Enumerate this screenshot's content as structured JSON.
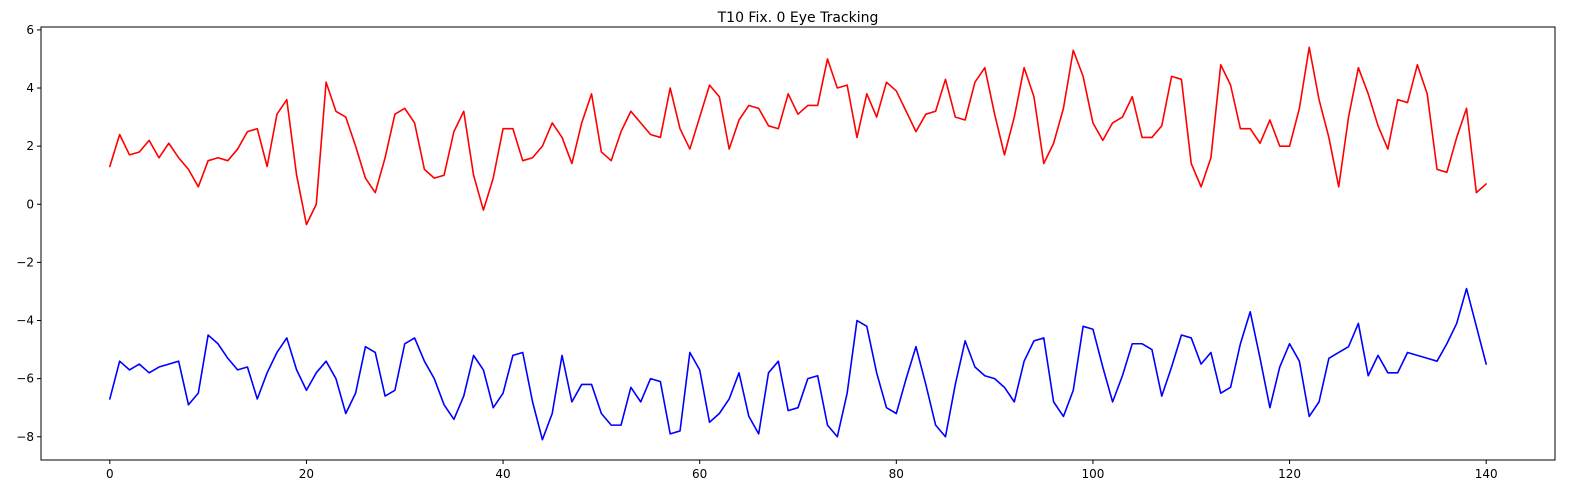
{
  "chart_data": {
    "type": "line",
    "title": "T10 Fix. 0 Eye Tracking",
    "xlabel": "",
    "ylabel": "",
    "xlim": [
      -7,
      147
    ],
    "ylim": [
      -8.8,
      6.1
    ],
    "xticks": [
      0,
      20,
      40,
      60,
      80,
      100,
      120,
      140
    ],
    "yticks": [
      -8,
      -6,
      -4,
      -2,
      0,
      2,
      4,
      6
    ],
    "grid": false,
    "legend": "none",
    "x": [
      0,
      1,
      2,
      3,
      4,
      5,
      6,
      7,
      8,
      9,
      10,
      11,
      12,
      13,
      14,
      15,
      16,
      17,
      18,
      19,
      20,
      21,
      22,
      23,
      24,
      25,
      26,
      27,
      28,
      29,
      30,
      31,
      32,
      33,
      34,
      35,
      36,
      37,
      38,
      39,
      40,
      41,
      42,
      43,
      44,
      45,
      46,
      47,
      48,
      49,
      50,
      51,
      52,
      53,
      54,
      55,
      56,
      57,
      58,
      59,
      60,
      61,
      62,
      63,
      64,
      65,
      66,
      67,
      68,
      69,
      70,
      71,
      72,
      73,
      74,
      75,
      76,
      77,
      78,
      79,
      80,
      81,
      82,
      83,
      84,
      85,
      86,
      87,
      88,
      89,
      90,
      91,
      92,
      93,
      94,
      95,
      96,
      97,
      98,
      99,
      100,
      101,
      102,
      103,
      104,
      105,
      106,
      107,
      108,
      109,
      110,
      111,
      112,
      113,
      114,
      115,
      116,
      117,
      118,
      119,
      120,
      121,
      122,
      123,
      124,
      125,
      126,
      127,
      128,
      129,
      130,
      131,
      132,
      133,
      134,
      135,
      136,
      137,
      138,
      139,
      140
    ],
    "series": [
      {
        "color": "#ff0000",
        "values": [
          1.3,
          2.4,
          1.7,
          1.8,
          2.2,
          1.6,
          2.1,
          1.6,
          1.2,
          0.6,
          1.5,
          1.6,
          1.5,
          1.9,
          2.5,
          2.6,
          1.3,
          3.1,
          3.6,
          1.0,
          -0.7,
          0.0,
          4.2,
          3.2,
          3.0,
          2.0,
          0.9,
          0.4,
          1.6,
          3.1,
          3.3,
          2.8,
          1.2,
          0.9,
          1.0,
          2.5,
          3.2,
          1.0,
          -0.2,
          0.9,
          2.6,
          2.6,
          1.5,
          1.6,
          2.0,
          2.8,
          2.3,
          1.4,
          2.8,
          3.8,
          1.8,
          1.5,
          2.5,
          3.2,
          2.8,
          2.4,
          2.3,
          4.0,
          2.6,
          1.9,
          3.0,
          4.1,
          3.7,
          1.9,
          2.9,
          3.4,
          3.3,
          2.7,
          2.6,
          3.8,
          3.1,
          3.4,
          3.4,
          5.0,
          4.0,
          4.1,
          2.3,
          3.8,
          3.0,
          4.2,
          3.9,
          3.2,
          2.5,
          3.1,
          3.2,
          4.3,
          3.0,
          2.9,
          4.2,
          4.7,
          3.1,
          1.7,
          3.0,
          4.7,
          3.7,
          1.4,
          2.1,
          3.3,
          5.3,
          4.4,
          2.8,
          2.2,
          2.8,
          3.0,
          3.7,
          2.3,
          2.3,
          2.7,
          4.4,
          4.3,
          1.4,
          0.6,
          1.6,
          4.8,
          4.1,
          2.6,
          2.6,
          2.1,
          2.9,
          2.0,
          2.0,
          3.3,
          5.4,
          3.6,
          2.3,
          0.6,
          3.0,
          4.7,
          3.8,
          2.7,
          1.9,
          3.6,
          3.5,
          4.8,
          3.8,
          1.2,
          1.1,
          2.3,
          3.3,
          0.4,
          0.7
        ]
      },
      {
        "color": "#0000ff",
        "values": [
          -6.7,
          -5.4,
          -5.7,
          -5.5,
          -5.8,
          -5.6,
          -5.5,
          -5.4,
          -6.9,
          -6.5,
          -4.5,
          -4.8,
          -5.3,
          -5.7,
          -5.6,
          -6.7,
          -5.8,
          -5.1,
          -4.6,
          -5.7,
          -6.4,
          -5.8,
          -5.4,
          -6.0,
          -7.2,
          -6.5,
          -4.9,
          -5.1,
          -6.6,
          -6.4,
          -4.8,
          -4.6,
          -5.4,
          -6.0,
          -6.9,
          -7.4,
          -6.6,
          -5.2,
          -5.7,
          -7.0,
          -6.5,
          -5.2,
          -5.1,
          -6.8,
          -8.1,
          -7.2,
          -5.2,
          -6.8,
          -6.2,
          -6.2,
          -7.2,
          -7.6,
          -7.6,
          -6.3,
          -6.8,
          -6.0,
          -6.1,
          -7.9,
          -7.8,
          -5.1,
          -5.7,
          -7.5,
          -7.2,
          -6.7,
          -5.8,
          -7.3,
          -7.9,
          -5.8,
          -5.4,
          -7.1,
          -7.0,
          -6.0,
          -5.9,
          -7.6,
          -8.0,
          -6.5,
          -4.0,
          -4.2,
          -5.8,
          -7.0,
          -7.2,
          -6.0,
          -4.9,
          -6.2,
          -7.6,
          -8.0,
          -6.2,
          -4.7,
          -5.6,
          -5.9,
          -6.0,
          -6.3,
          -6.8,
          -5.4,
          -4.7,
          -4.6,
          -6.8,
          -7.3,
          -6.4,
          -4.2,
          -4.3,
          -5.6,
          -6.8,
          -5.9,
          -4.8,
          -4.8,
          -5.0,
          -6.6,
          -5.6,
          -4.5,
          -4.6,
          -5.5,
          -5.1,
          -6.5,
          -6.3,
          -4.8,
          -3.7,
          -5.3,
          -7.0,
          -5.6,
          -4.8,
          -5.4,
          -7.3,
          -6.8,
          -5.3,
          -5.1,
          -4.9,
          -4.1,
          -5.9,
          -5.2,
          -5.8,
          -5.8,
          -5.1,
          -5.2,
          -5.3,
          -5.4,
          -4.8,
          -4.1,
          -2.9,
          -4.2,
          -5.5
        ]
      }
    ]
  }
}
